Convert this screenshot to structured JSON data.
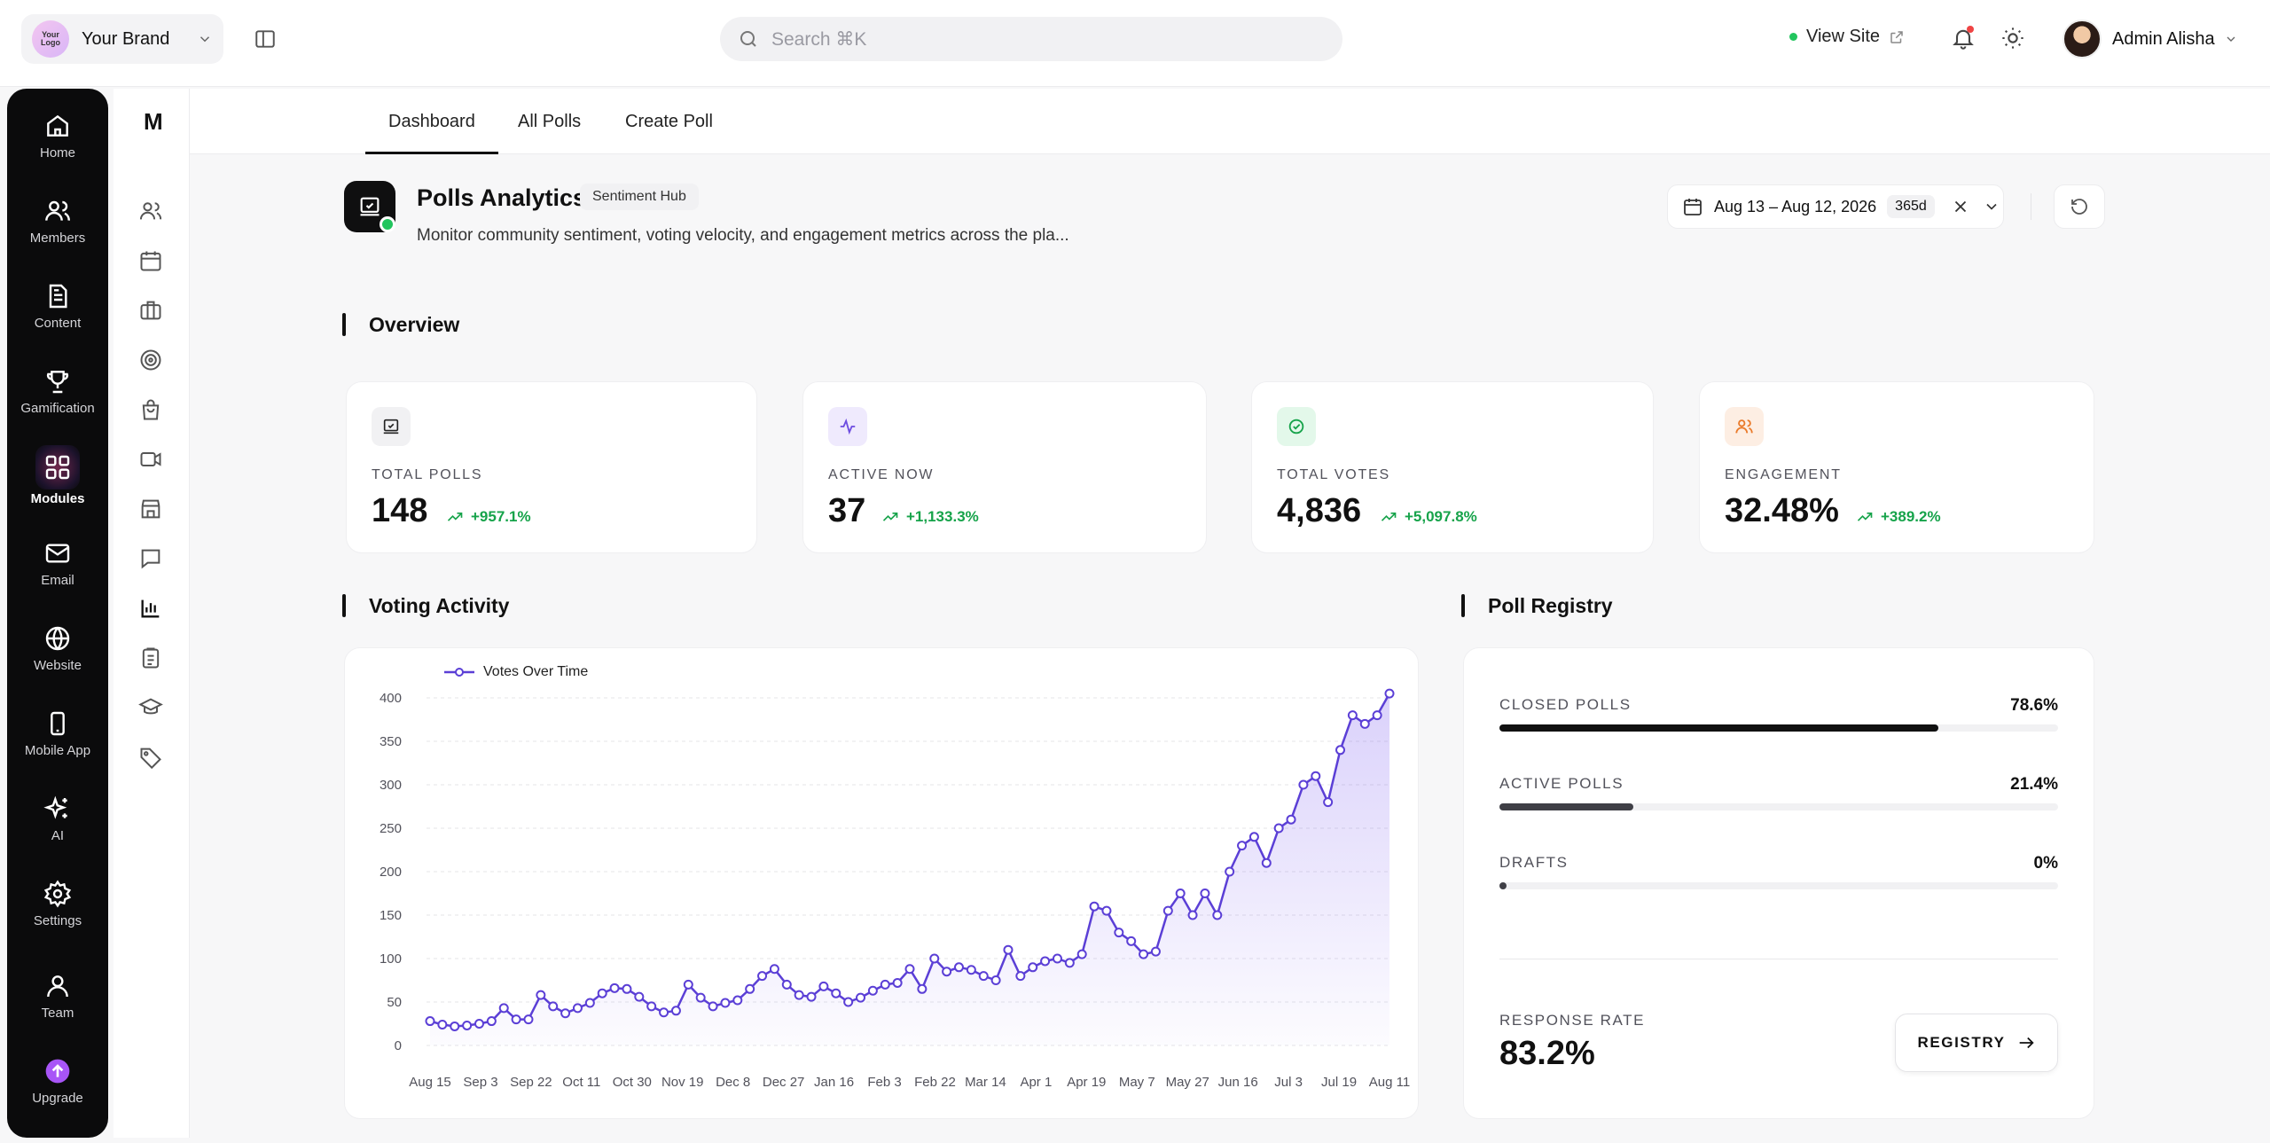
{
  "topbar": {
    "brand_logo_text": "Your Logo",
    "brand_name": "Your Brand",
    "search_placeholder": "Search ⌘K",
    "view_site": "View Site",
    "admin_name": "Admin Alisha",
    "notification_dot_color": "#ef4444"
  },
  "sidebar": {
    "items": [
      {
        "label": "Home",
        "icon": "home-icon"
      },
      {
        "label": "Members",
        "icon": "users-icon"
      },
      {
        "label": "Content",
        "icon": "document-icon"
      },
      {
        "label": "Gamification",
        "icon": "trophy-icon"
      },
      {
        "label": "Modules",
        "icon": "modules-icon",
        "active": true
      },
      {
        "label": "Email",
        "icon": "mail-icon"
      },
      {
        "label": "Website",
        "icon": "globe-icon"
      },
      {
        "label": "Mobile App",
        "icon": "phone-icon"
      },
      {
        "label": "AI",
        "icon": "sparkles-icon"
      },
      {
        "label": "Settings",
        "icon": "gear-icon"
      },
      {
        "label": "Team",
        "icon": "team-icon"
      },
      {
        "label": "Upgrade",
        "icon": "upgrade-icon"
      }
    ]
  },
  "subsidebar": {
    "logo": "M",
    "icons": [
      "users-icon",
      "calendar-icon",
      "briefcase-icon",
      "target-icon",
      "bag-icon",
      "video-icon",
      "store-icon",
      "chat-icon",
      "bar-chart-icon",
      "clipboard-icon",
      "graduation-cap-icon",
      "tag-icon"
    ]
  },
  "tabs": [
    "Dashboard",
    "All Polls",
    "Create Poll"
  ],
  "header": {
    "title": "Polls Analytics",
    "badge": "Sentiment Hub",
    "description": "Monitor community sentiment, voting velocity, and engagement metrics across the pla...",
    "date_range": "Aug 13 – Aug 12, 2026",
    "days": "365d"
  },
  "sections": {
    "overview": "Overview",
    "voting_activity": "Voting Activity",
    "poll_registry": "Poll Registry"
  },
  "kpis": [
    {
      "label": "TOTAL POLLS",
      "value": "148",
      "delta": "+957.1%",
      "icon": "poll-icon",
      "icon_bg": "#f1f1f3",
      "icon_color": "#222"
    },
    {
      "label": "ACTIVE NOW",
      "value": "37",
      "delta": "+1,133.3%",
      "icon": "activity-icon",
      "icon_bg": "#efeafd",
      "icon_color": "#6d4de0"
    },
    {
      "label": "TOTAL VOTES",
      "value": "4,836",
      "delta": "+5,097.8%",
      "icon": "check-circle-icon",
      "icon_bg": "#e3f8ea",
      "icon_color": "#16a34a"
    },
    {
      "label": "ENGAGEMENT",
      "value": "32.48%",
      "delta": "+389.2%",
      "icon": "people-icon",
      "icon_bg": "#fdeee3",
      "icon_color": "#ea7a2a"
    }
  ],
  "registry": {
    "rows": [
      {
        "label": "CLOSED POLLS",
        "pct": "78.6%",
        "value": 78.6
      },
      {
        "label": "ACTIVE POLLS",
        "pct": "21.4%",
        "value": 21.4
      },
      {
        "label": "DRAFTS",
        "pct": "0%",
        "value": 0
      }
    ],
    "response_rate_label": "RESPONSE RATE",
    "response_rate": "83.2%",
    "button": "REGISTRY"
  },
  "chart_data": {
    "type": "area",
    "series": [
      {
        "name": "Votes Over Time",
        "color": "#5b3fd6"
      }
    ],
    "ylim": [
      0,
      400
    ],
    "yticks": [
      0,
      50,
      100,
      150,
      200,
      250,
      300,
      350,
      400
    ],
    "xticks": [
      "Aug 15",
      "Sep 3",
      "Sep 22",
      "Oct 11",
      "Oct 30",
      "Nov 19",
      "Dec 8",
      "Dec 27",
      "Jan 16",
      "Feb 3",
      "Feb 22",
      "Mar 14",
      "Apr 1",
      "Apr 19",
      "May 7",
      "May 27",
      "Jun 16",
      "Jul 3",
      "Jul 19",
      "Aug 11"
    ],
    "values": [
      28,
      24,
      22,
      23,
      25,
      28,
      43,
      30,
      30,
      58,
      45,
      37,
      43,
      49,
      60,
      66,
      65,
      56,
      45,
      38,
      40,
      70,
      55,
      45,
      49,
      52,
      65,
      80,
      88,
      70,
      58,
      56,
      68,
      60,
      50,
      55,
      63,
      70,
      72,
      88,
      65,
      100,
      85,
      90,
      87,
      80,
      75,
      110,
      80,
      90,
      97,
      100,
      95,
      105,
      160,
      155,
      130,
      120,
      105,
      108,
      155,
      175,
      150,
      175,
      150,
      200,
      230,
      240,
      210,
      250,
      260,
      300,
      310,
      280,
      340,
      380,
      370,
      380,
      405
    ],
    "grid": true,
    "legend": "top-left"
  }
}
